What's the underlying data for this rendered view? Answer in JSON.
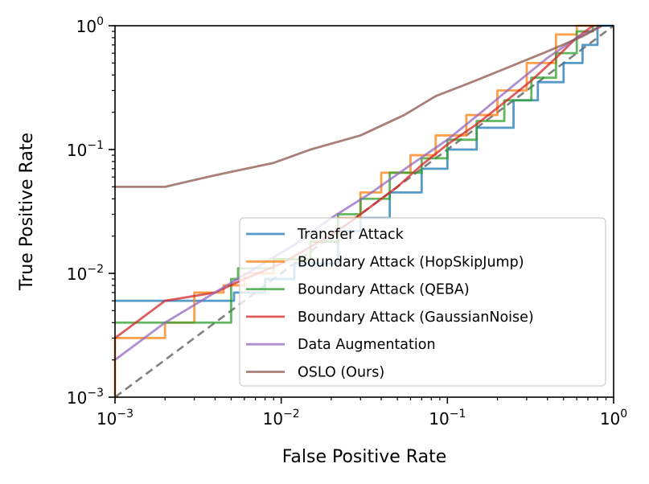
{
  "chart_data": {
    "type": "line",
    "xlabel": "False Positive Rate",
    "ylabel": "True Positive Rate",
    "xscale": "log",
    "yscale": "log",
    "xlim": [
      0.001,
      1
    ],
    "ylim": [
      0.001,
      1
    ],
    "x_ticks": [
      {
        "value": 0.001,
        "base": "10",
        "exp": "−3"
      },
      {
        "value": 0.01,
        "base": "10",
        "exp": "−2"
      },
      {
        "value": 0.1,
        "base": "10",
        "exp": "−1"
      },
      {
        "value": 1,
        "base": "10",
        "exp": "0"
      }
    ],
    "y_ticks": [
      {
        "value": 0.001,
        "base": "10",
        "exp": "−3"
      },
      {
        "value": 0.01,
        "base": "10",
        "exp": "−2"
      },
      {
        "value": 0.1,
        "base": "10",
        "exp": "−1"
      },
      {
        "value": 1,
        "base": "10",
        "exp": "0"
      }
    ],
    "legend_position": "lower-right",
    "reference_line": {
      "name": "random-guess",
      "color": "#808080",
      "style": "dashed",
      "x": [
        0.001,
        1
      ],
      "y": [
        0.001,
        1
      ]
    },
    "series": [
      {
        "name": "Transfer Attack",
        "color": "#1f77b4",
        "step": true,
        "x": [
          0.001,
          0.0049,
          0.0052,
          0.008,
          0.012,
          0.022,
          0.03,
          0.045,
          0.07,
          0.1,
          0.15,
          0.25,
          0.35,
          0.5,
          0.65,
          0.8,
          1.0
        ],
        "y": [
          0.006,
          0.006,
          0.007,
          0.009,
          0.012,
          0.022,
          0.028,
          0.045,
          0.07,
          0.1,
          0.15,
          0.25,
          0.35,
          0.5,
          0.7,
          1.0,
          1.0
        ]
      },
      {
        "name": "Boundary Attack (HopSkipJump)",
        "color": "#ff7f0e",
        "step": true,
        "x": [
          0.001,
          0.001,
          0.002,
          0.003,
          0.0045,
          0.006,
          0.009,
          0.015,
          0.022,
          0.03,
          0.04,
          0.06,
          0.085,
          0.13,
          0.2,
          0.3,
          0.45,
          0.6,
          0.8
        ],
        "y": [
          0.001,
          0.003,
          0.004,
          0.007,
          0.008,
          0.01,
          0.013,
          0.018,
          0.028,
          0.045,
          0.065,
          0.09,
          0.13,
          0.19,
          0.3,
          0.5,
          0.85,
          1.0,
          1.0
        ]
      },
      {
        "name": "Boundary Attack (QEBA)",
        "color": "#2ca02c",
        "step": true,
        "x": [
          0.001,
          0.002,
          0.005,
          0.0055,
          0.009,
          0.015,
          0.022,
          0.03,
          0.045,
          0.07,
          0.1,
          0.15,
          0.22,
          0.32,
          0.45,
          0.6,
          0.75
        ],
        "y": [
          0.004,
          0.004,
          0.009,
          0.011,
          0.013,
          0.018,
          0.03,
          0.04,
          0.065,
          0.085,
          0.12,
          0.17,
          0.25,
          0.38,
          0.6,
          0.9,
          1.0
        ]
      },
      {
        "name": "Boundary Attack (GaussianNoise)",
        "color": "#d62728",
        "step": false,
        "x": [
          0.001,
          0.002,
          0.004,
          0.006,
          0.01,
          0.017,
          0.025,
          0.035,
          0.05,
          0.07,
          0.1,
          0.15,
          0.22,
          0.32,
          0.45,
          0.6,
          0.75
        ],
        "y": [
          0.003,
          0.006,
          0.007,
          0.009,
          0.012,
          0.018,
          0.025,
          0.035,
          0.05,
          0.075,
          0.11,
          0.16,
          0.24,
          0.36,
          0.55,
          0.8,
          1.0
        ]
      },
      {
        "name": "Data Augmentation",
        "color": "#9467bd",
        "step": false,
        "x": [
          0.001,
          0.002,
          0.004,
          0.007,
          0.012,
          0.02,
          0.035,
          0.06,
          0.1,
          0.16,
          0.25,
          0.4,
          0.6,
          0.85
        ],
        "y": [
          0.002,
          0.004,
          0.007,
          0.011,
          0.017,
          0.028,
          0.045,
          0.075,
          0.12,
          0.2,
          0.33,
          0.55,
          0.8,
          1.0
        ]
      },
      {
        "name": "OSLO (Ours)",
        "color": "#8c564b",
        "step": false,
        "x": [
          0.001,
          0.002,
          0.004,
          0.009,
          0.015,
          0.03,
          0.055,
          0.085,
          0.14,
          0.25,
          0.4,
          0.65,
          0.85
        ],
        "y": [
          0.05,
          0.05,
          0.062,
          0.078,
          0.1,
          0.13,
          0.19,
          0.27,
          0.35,
          0.48,
          0.62,
          0.82,
          1.0
        ]
      }
    ]
  }
}
